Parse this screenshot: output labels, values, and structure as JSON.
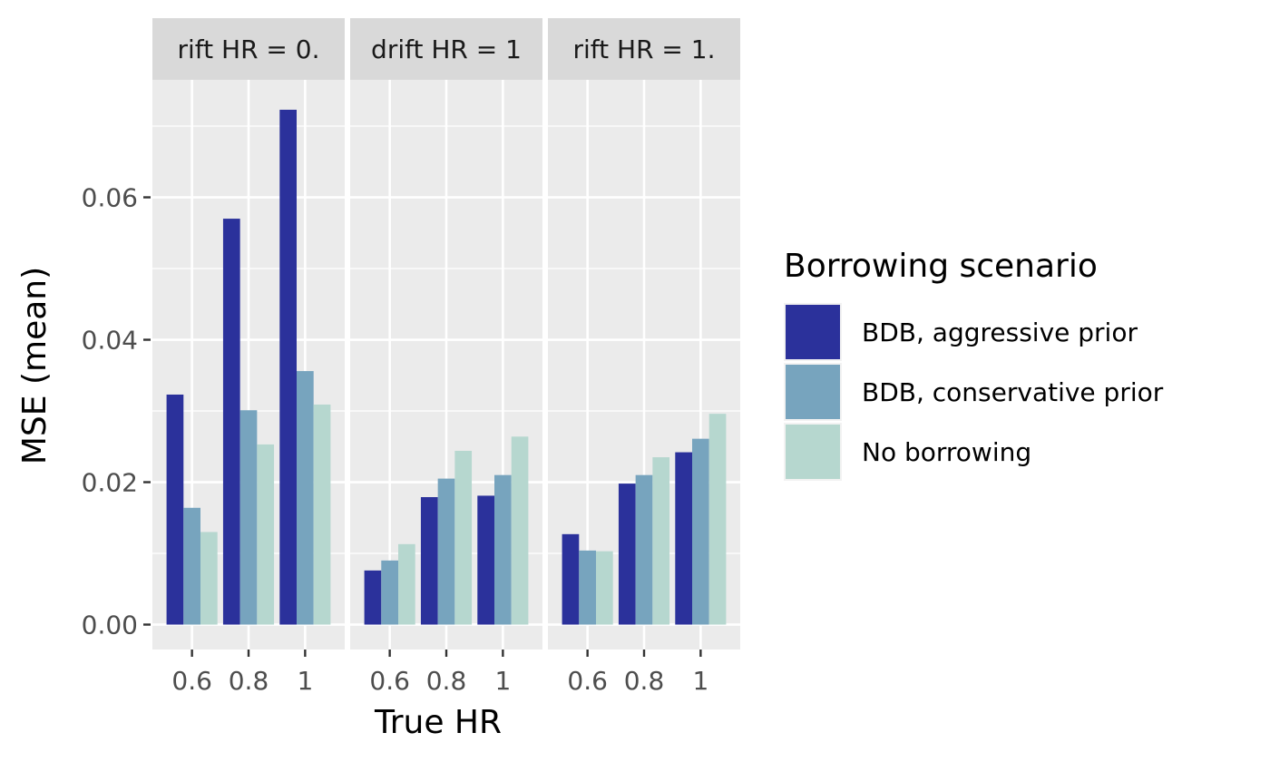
{
  "chart_data": {
    "type": "bar",
    "facet_strips": [
      "rift HR = 0.",
      "drift HR = 1",
      "rift HR = 1."
    ],
    "categories": [
      "0.6",
      "0.8",
      "1"
    ],
    "xlabel": "True HR",
    "ylabel": "MSE (mean)",
    "ylim": [
      -0.0035,
      0.0765
    ],
    "y_ticks": [
      0,
      0.02,
      0.04,
      0.06
    ],
    "y_tick_labels": [
      "0.00",
      "0.02",
      "0.04",
      "0.06"
    ],
    "grid": true,
    "legend": {
      "title": "Borrowing scenario",
      "placement": "right"
    },
    "series": [
      {
        "name": "BDB, aggressive prior",
        "color": "#2b319b",
        "values": [
          [
            0.0323,
            0.057,
            0.0723
          ],
          [
            0.0076,
            0.0179,
            0.0181
          ],
          [
            0.0127,
            0.0198,
            0.0242
          ]
        ]
      },
      {
        "name": "BDB, conservative prior",
        "color": "#77a4be",
        "values": [
          [
            0.0164,
            0.0301,
            0.0356
          ],
          [
            0.009,
            0.0205,
            0.021
          ],
          [
            0.0104,
            0.021,
            0.0261
          ]
        ]
      },
      {
        "name": "No borrowing",
        "color": "#b6d7cf",
        "values": [
          [
            0.013,
            0.0253,
            0.0309
          ],
          [
            0.0113,
            0.0244,
            0.0264
          ],
          [
            0.0103,
            0.0235,
            0.0296
          ]
        ]
      }
    ]
  }
}
